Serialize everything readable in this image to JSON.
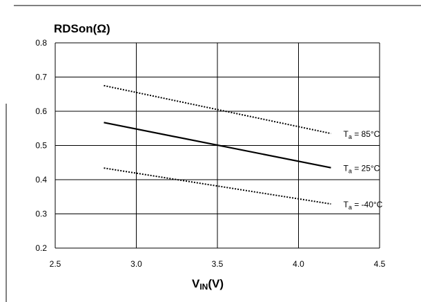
{
  "chart_data": {
    "type": "line",
    "title": "",
    "ylabel": "RDSon(Ω)",
    "xlabel": "V_IN(V)",
    "xlabel_main": "V",
    "xlabel_sub": "IN",
    "xlabel_tail": "(V)",
    "xlim": [
      2.5,
      4.5
    ],
    "ylim": [
      0.2,
      0.8
    ],
    "xticks": [
      "2.5",
      "3.0",
      "3.5",
      "4.0",
      "4.5"
    ],
    "yticks": [
      "0.2",
      "0.3",
      "0.4",
      "0.5",
      "0.6",
      "0.7",
      "0.8"
    ],
    "grid": true,
    "series": [
      {
        "name": "Ta = 85°C",
        "label_main": "T",
        "label_sub": "a",
        "label_tail": " = 85°C",
        "style": "dotted",
        "x": [
          2.8,
          4.2
        ],
        "y": [
          0.675,
          0.535
        ]
      },
      {
        "name": "Ta = 25°C",
        "label_main": "T",
        "label_sub": "a",
        "label_tail": " = 25°C",
        "style": "solid",
        "x": [
          2.8,
          4.2
        ],
        "y": [
          0.567,
          0.435
        ]
      },
      {
        "name": "Ta = -40°C",
        "label_main": "T",
        "label_sub": "a",
        "label_tail": " = -40°C",
        "style": "dotted",
        "x": [
          2.8,
          4.2
        ],
        "y": [
          0.434,
          0.329
        ]
      }
    ]
  }
}
